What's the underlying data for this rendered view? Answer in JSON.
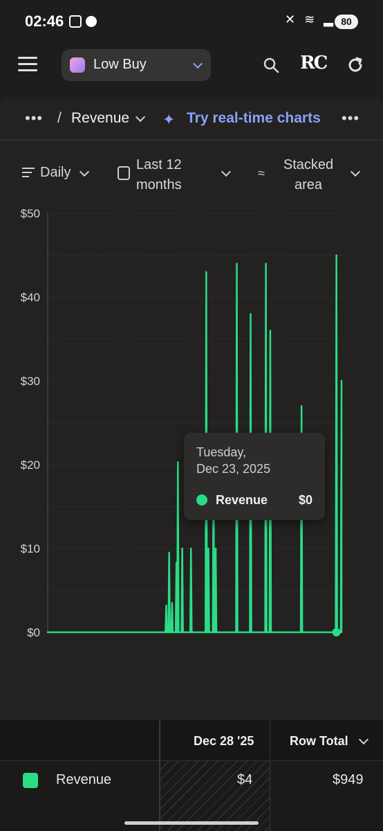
{
  "status_bar": {
    "time": "02:46",
    "battery": "80"
  },
  "header": {
    "app_name": "Low Buy",
    "rc_logo": "RC",
    "accent": "#8da0f7"
  },
  "breadcrumb": {
    "more": "•••",
    "slash": "/",
    "title": "Revenue",
    "realtime_label": "Try real-time charts",
    "more_right": "•••"
  },
  "filters": {
    "interval": "Daily",
    "range": "Last 12 months",
    "chart_type": "Stacked area"
  },
  "tooltip": {
    "day": "Tuesday,",
    "date": "Dec 23, 2025",
    "series": "Revenue",
    "value": "$0"
  },
  "table": {
    "col_date": "Dec 28 '25",
    "col_total": "Row Total",
    "rows": [
      {
        "label": "Revenue",
        "value": "$4",
        "total": "$949",
        "color": "#2bdc87"
      }
    ]
  },
  "chart_data": {
    "type": "area",
    "ylim": [
      0,
      50
    ],
    "yticks": [
      "$0",
      "$10",
      "$20",
      "$30",
      "$40",
      "$50"
    ],
    "color": "#2bdc87",
    "values": [
      0,
      0,
      0,
      0,
      0,
      0,
      0,
      0,
      0,
      0,
      0,
      0,
      0,
      0,
      0,
      0,
      0,
      0,
      0,
      0,
      0,
      0,
      0,
      0,
      0,
      0,
      0,
      0,
      0,
      0,
      0,
      0,
      0,
      0,
      0,
      0,
      0,
      0,
      0,
      0,
      0,
      0,
      0,
      0,
      0,
      0,
      0,
      0,
      0,
      0,
      0,
      0,
      0,
      0,
      0,
      0,
      0,
      0,
      0,
      0,
      0,
      0,
      0,
      0,
      0,
      0,
      0,
      0,
      0,
      0,
      0,
      0,
      0,
      0,
      0,
      0,
      0,
      0,
      0,
      0,
      0,
      0,
      0,
      0,
      0,
      0,
      0,
      0,
      0,
      0,
      0,
      0,
      0,
      0,
      0,
      0,
      0,
      0,
      0,
      0,
      0,
      0,
      0,
      0,
      0,
      0,
      0,
      0,
      0,
      0,
      0,
      0,
      0,
      0,
      0,
      0,
      0,
      0,
      0,
      0,
      0,
      0,
      0,
      0,
      0,
      0,
      0,
      0,
      0,
      0,
      0,
      0,
      0,
      0,
      0,
      0,
      0,
      0,
      0,
      0,
      0,
      0,
      0,
      0,
      0,
      0,
      0,
      0,
      0,
      0,
      0,
      0,
      0,
      0,
      0,
      0,
      0,
      0,
      0,
      0,
      0,
      0,
      0,
      3.2,
      0,
      0,
      0,
      9.5,
      0,
      0,
      0,
      3.5,
      0,
      0,
      0,
      0,
      0,
      8.3,
      0,
      20.3,
      0,
      0,
      0,
      0,
      0,
      10,
      0,
      0,
      0,
      0,
      0,
      0,
      0,
      0,
      0,
      0,
      0,
      10,
      0,
      0,
      0,
      0,
      0,
      0,
      0,
      0,
      0,
      0,
      0,
      0,
      0,
      0,
      0,
      0,
      0,
      0,
      0,
      0,
      43,
      0,
      0,
      10,
      0,
      0,
      0,
      0,
      0,
      0,
      20,
      0,
      0,
      10,
      0,
      0,
      0,
      0,
      0,
      0,
      0,
      0,
      0,
      0,
      0,
      0,
      0,
      0,
      0,
      0,
      0,
      0,
      0,
      0,
      0,
      0,
      0,
      0,
      0,
      0,
      0,
      0,
      44,
      0,
      0,
      0,
      0,
      0,
      0,
      0,
      0,
      0,
      0,
      0,
      0,
      0,
      0,
      0,
      0,
      0,
      0,
      38,
      0,
      0,
      0,
      0,
      0,
      0,
      0,
      0,
      0,
      0,
      0,
      0,
      0,
      0,
      0,
      0,
      0,
      0,
      0,
      0,
      44,
      0,
      0,
      0,
      0,
      0,
      36,
      0,
      0,
      0,
      0,
      0,
      0,
      0,
      0,
      0,
      0,
      0,
      0,
      0,
      0,
      0,
      0,
      0,
      0,
      0,
      0,
      0,
      0,
      0,
      0,
      0,
      0,
      0,
      0,
      0,
      0,
      0,
      0,
      0,
      0,
      0,
      0,
      0,
      0,
      0,
      0,
      0,
      0,
      27,
      0,
      0,
      0,
      0,
      0,
      0,
      0,
      0,
      0,
      0,
      0,
      0,
      0,
      0,
      0,
      0,
      0,
      0,
      0,
      0,
      0,
      0,
      0,
      0,
      0,
      0,
      0,
      0,
      0,
      0,
      0,
      0,
      0,
      0,
      0,
      0,
      0,
      0,
      0,
      0,
      0,
      0,
      0,
      0,
      0,
      0,
      0,
      45,
      0,
      0,
      0,
      0,
      0,
      0,
      30
    ]
  }
}
